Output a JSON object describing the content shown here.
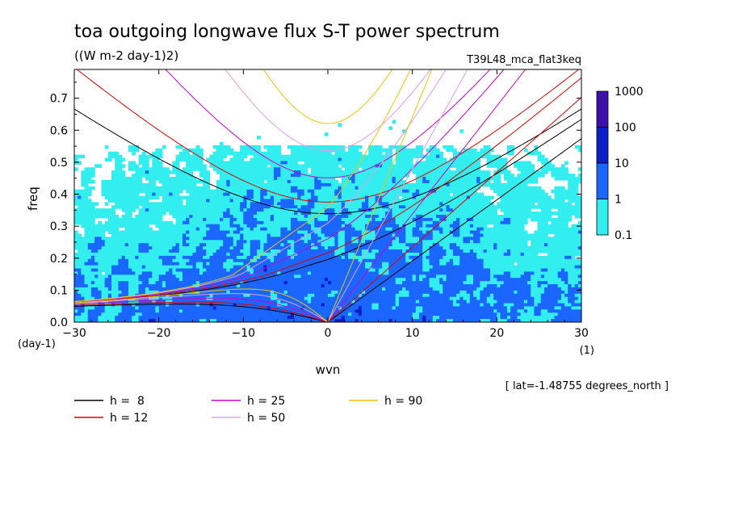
{
  "chart_data": {
    "type": "heatmap",
    "title": "toa outgoing longwave flux S-T power spectrum",
    "subtitle": "((W m-2 day-1)2)",
    "run_label": "T39L48_mca_flat3keq",
    "xlabel": "wvn",
    "ylabel": "freq",
    "x_unit": "(1)",
    "y_unit": "(day-1)",
    "xlim": [
      -30,
      30
    ],
    "ylim": [
      0,
      0.79
    ],
    "x_ticks": [
      -30,
      -20,
      -10,
      0,
      10,
      20,
      30
    ],
    "x_tick_labels": [
      "−30",
      "−20",
      "−10",
      "0",
      "10",
      "20",
      "30"
    ],
    "y_ticks": [
      0.0,
      0.1,
      0.2,
      0.3,
      0.4,
      0.5,
      0.6,
      0.7
    ],
    "y_tick_labels": [
      "0.0",
      "0.1",
      "0.2",
      "0.3",
      "0.4",
      "0.5",
      "0.6",
      "0.7"
    ],
    "colorbar": {
      "levels": [
        0.1,
        1,
        10,
        100,
        1000
      ],
      "level_labels": [
        "0.1",
        "1",
        "10",
        "100",
        "1000"
      ],
      "colors": [
        "#33eeee",
        "#1a66ff",
        "#0a1fc8",
        "#3c11aa"
      ]
    },
    "annotation": "[ lat=-1.48755 degrees_north ]",
    "dispersion_curves": [
      {
        "label": "h =  8",
        "h": 8,
        "color": "#000000"
      },
      {
        "label": "h = 12",
        "h": 12,
        "color": "#e00000"
      },
      {
        "label": "h = 25",
        "h": 25,
        "color": "#d000c8"
      },
      {
        "label": "h = 50",
        "h": 50,
        "color": "#e39ee6"
      },
      {
        "label": "h = 90",
        "h": 90,
        "color": "#e8c800"
      }
    ]
  }
}
